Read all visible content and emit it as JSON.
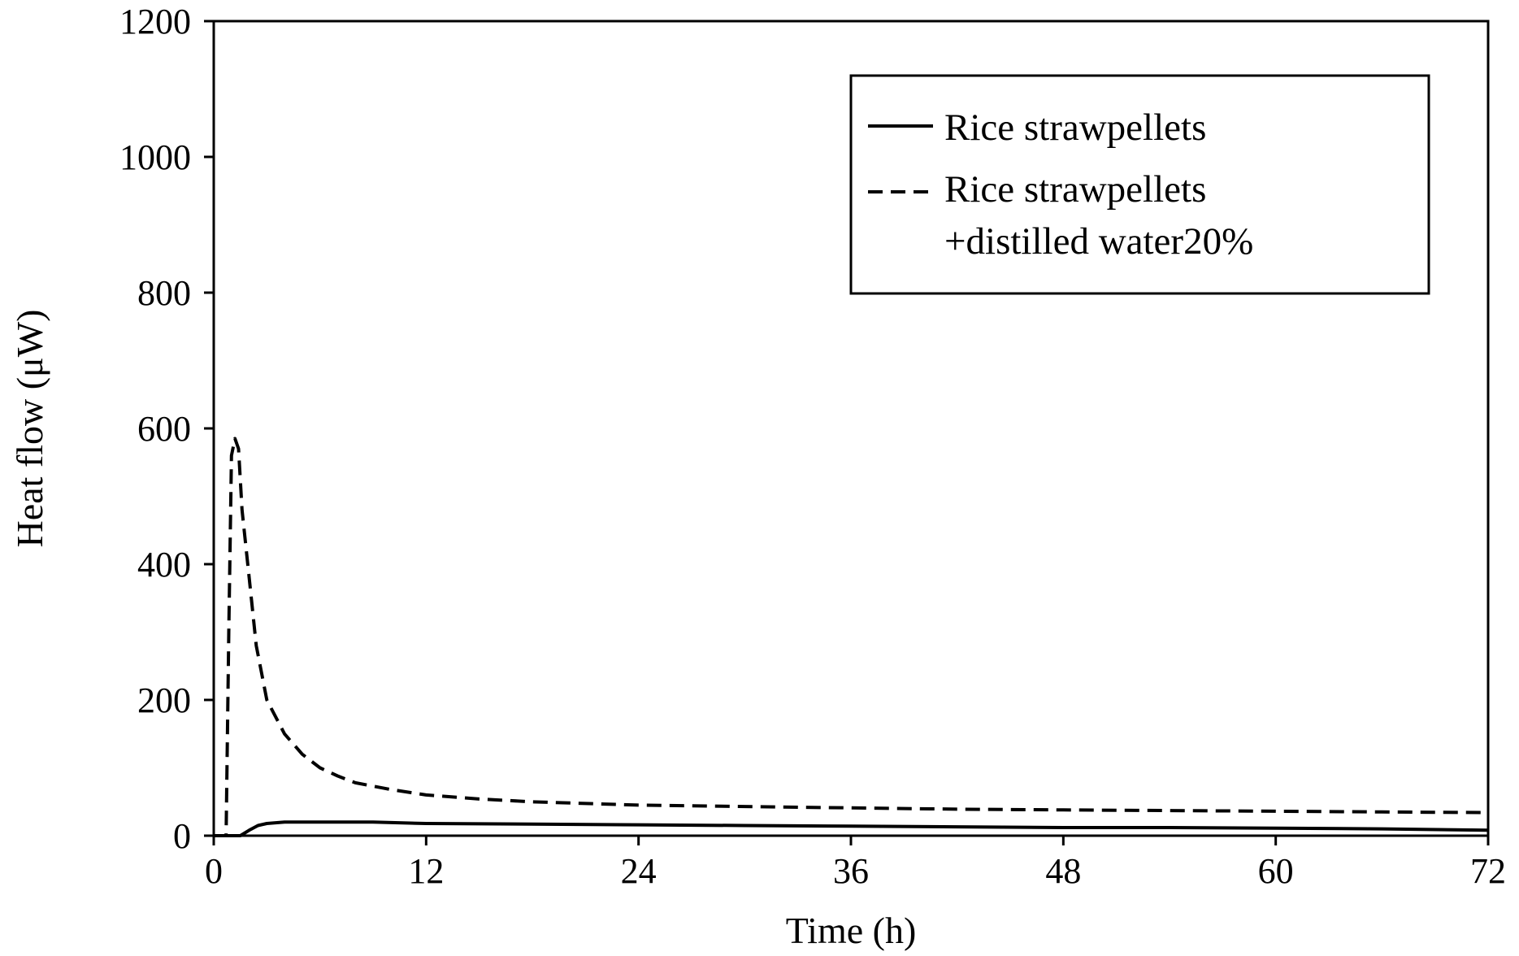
{
  "chart_data": {
    "type": "line",
    "title": "",
    "xlabel": "Time (h)",
    "ylabel": "Heat flow (μW)",
    "xlim": [
      0,
      72
    ],
    "ylim": [
      0,
      1200
    ],
    "xticks": [
      0,
      12,
      24,
      36,
      48,
      60,
      72
    ],
    "yticks": [
      0,
      200,
      400,
      600,
      800,
      1000,
      1200
    ],
    "xtick_labels": [
      "0",
      "12",
      "24",
      "36",
      "48",
      "60",
      "72"
    ],
    "ytick_labels": [
      "0",
      "200",
      "400",
      "600",
      "800",
      "1000",
      "1200"
    ],
    "grid": false,
    "legend_position": "top-right",
    "series": [
      {
        "name": "Rice strawpellets",
        "style": "solid",
        "color": "#000000",
        "x": [
          0,
          1.5,
          2,
          2.5,
          3,
          4,
          6,
          9,
          12,
          18,
          24,
          30,
          36,
          42,
          48,
          54,
          60,
          66,
          72
        ],
        "y": [
          0,
          0,
          8,
          15,
          18,
          20,
          20,
          20,
          18,
          17,
          16,
          15,
          14,
          13,
          12,
          12,
          11,
          10,
          8
        ]
      },
      {
        "name": "Rice strawpellets +distilled water20%",
        "style": "dashed",
        "color": "#000000",
        "x": [
          0,
          0.7,
          0.85,
          1.0,
          1.2,
          1.4,
          1.6,
          2.0,
          2.4,
          3.0,
          4.0,
          5.0,
          6.0,
          7.0,
          8.0,
          10,
          12,
          15,
          18,
          24,
          30,
          36,
          42,
          48,
          54,
          60,
          66,
          72
        ],
        "y": [
          0,
          0,
          300,
          560,
          585,
          570,
          480,
          380,
          280,
          200,
          150,
          120,
          100,
          88,
          78,
          68,
          60,
          54,
          50,
          45,
          43,
          41,
          39,
          38,
          37,
          36,
          35,
          34
        ]
      }
    ],
    "legend_entries": [
      {
        "line1": "Rice strawpellets",
        "line2": ""
      },
      {
        "line1": "Rice strawpellets",
        "line2": "+distilled water20%"
      }
    ]
  }
}
